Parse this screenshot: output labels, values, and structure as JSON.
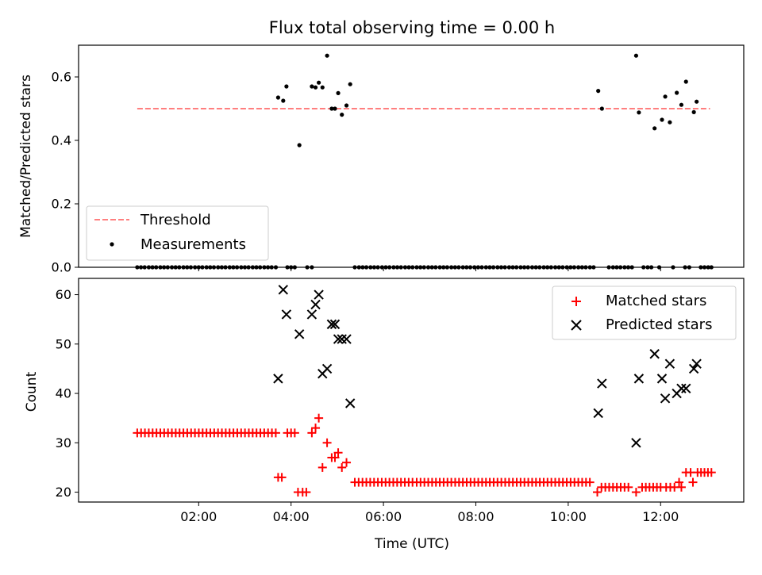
{
  "chart_data": [
    {
      "type": "scatter",
      "title": "Flux total observing time = 0.00 h",
      "xlabel": "",
      "ylabel": "Matched/Predicted stars",
      "xlim_hours": [
        -0.6,
        13.8
      ],
      "ylim": [
        0,
        0.7
      ],
      "yticks": [
        0.0,
        0.2,
        0.4,
        0.6
      ],
      "ytick_labels": [
        "0.0",
        "0.2",
        "0.4",
        "0.6"
      ],
      "xticks_hours": [
        2,
        4,
        6,
        8,
        10,
        12
      ],
      "grid": false,
      "legend": "lower-left",
      "series": [
        {
          "name": "Threshold",
          "style": "dashed-line",
          "color": "#ff7f7f",
          "x_hours": [
            0.67,
            13.07
          ],
          "y": [
            0.5,
            0.5
          ]
        },
        {
          "name": "Measurements",
          "style": "dot",
          "color": "#000000",
          "zero_points_x_hours": [
            0.67,
            0.75,
            0.83,
            0.92,
            1.0,
            1.08,
            1.17,
            1.25,
            1.33,
            1.42,
            1.5,
            1.58,
            1.67,
            1.75,
            1.83,
            1.92,
            2.0,
            2.08,
            2.17,
            2.25,
            2.33,
            2.42,
            2.5,
            2.58,
            2.67,
            2.75,
            2.83,
            2.92,
            3.0,
            3.08,
            3.17,
            3.25,
            3.33,
            3.42,
            3.5,
            3.58,
            3.67,
            3.92,
            4.0,
            4.08,
            4.35,
            4.45,
            5.38,
            5.47,
            5.55,
            5.63,
            5.72,
            5.8,
            5.88,
            5.97,
            6.05,
            6.13,
            6.22,
            6.3,
            6.38,
            6.47,
            6.55,
            6.63,
            6.72,
            6.8,
            6.88,
            6.97,
            7.05,
            7.13,
            7.22,
            7.3,
            7.38,
            7.47,
            7.55,
            7.63,
            7.72,
            7.8,
            7.88,
            7.97,
            8.05,
            8.13,
            8.22,
            8.3,
            8.38,
            8.47,
            8.55,
            8.63,
            8.72,
            8.8,
            8.88,
            8.97,
            9.05,
            9.13,
            9.22,
            9.3,
            9.38,
            9.47,
            9.55,
            9.63,
            9.72,
            9.8,
            9.88,
            9.97,
            10.05,
            10.13,
            10.22,
            10.3,
            10.38,
            10.47,
            10.55,
            10.88,
            10.97,
            11.05,
            11.13,
            11.22,
            11.3,
            11.38,
            11.63,
            11.72,
            11.8,
            11.97,
            12.27,
            12.53,
            12.62,
            12.87,
            12.95,
            13.03,
            13.1
          ],
          "x_hours": [
            3.72,
            3.83,
            3.9,
            4.18,
            4.45,
            4.53,
            4.6,
            4.68,
            4.78,
            4.88,
            4.95,
            5.02,
            5.1,
            5.2,
            5.28,
            10.65,
            10.73,
            11.47,
            11.53,
            11.87,
            12.03,
            12.1,
            12.2,
            12.35,
            12.45,
            12.55,
            12.72,
            12.78
          ],
          "y": [
            0.535,
            0.525,
            0.57,
            0.385,
            0.57,
            0.567,
            0.582,
            0.567,
            0.667,
            0.5,
            0.5,
            0.549,
            0.481,
            0.51,
            0.577,
            0.556,
            0.5,
            0.667,
            0.488,
            0.438,
            0.465,
            0.538,
            0.457,
            0.55,
            0.512,
            0.585,
            0.489,
            0.522
          ]
        }
      ]
    },
    {
      "type": "scatter",
      "title": "",
      "xlabel": "Time (UTC)",
      "ylabel": "Count",
      "xlim_hours": [
        -0.6,
        13.8
      ],
      "ylim": [
        18,
        63.3
      ],
      "yticks": [
        20,
        30,
        40,
        50,
        60
      ],
      "ytick_labels": [
        "20",
        "30",
        "40",
        "50",
        "60"
      ],
      "xticks_hours": [
        2,
        4,
        6,
        8,
        10,
        12
      ],
      "xtick_labels": [
        "02:00",
        "04:00",
        "06:00",
        "08:00",
        "10:00",
        "12:00"
      ],
      "grid": false,
      "legend": "top-right",
      "series": [
        {
          "name": "Matched stars",
          "marker": "+",
          "color": "#ff0000",
          "points": [
            {
              "x_from": 0.67,
              "x_to": 3.67,
              "step": 0.0833,
              "y": 32
            },
            {
              "x_from": 3.92,
              "x_to": 4.08,
              "step": 0.08,
              "y": 32
            },
            {
              "x_from": 5.38,
              "x_to": 6.63,
              "step": 0.0833,
              "y": 22
            },
            {
              "x_from": 6.72,
              "x_to": 10.55,
              "step": 0.0833,
              "y": 22
            },
            {
              "x_from": 10.72,
              "x_to": 11.38,
              "step": 0.0833,
              "y": 21
            },
            {
              "x_from": 11.6,
              "x_to": 12.0,
              "step": 0.08,
              "y": 21
            },
            {
              "x_from": 12.12,
              "x_to": 12.3,
              "step": 0.09,
              "y": 21
            },
            {
              "x_from": 12.55,
              "x_to": 12.65,
              "step": 0.1,
              "y": 24
            },
            {
              "x_from": 12.8,
              "x_to": 13.1,
              "step": 0.075,
              "y": 24
            }
          ],
          "x_hours": [
            3.72,
            3.8,
            4.15,
            4.25,
            4.33,
            4.45,
            4.53,
            4.6,
            4.68,
            4.78,
            4.88,
            4.95,
            5.02,
            5.1,
            5.2,
            10.63,
            11.47,
            12.4,
            12.45,
            12.7
          ],
          "y": [
            23,
            23,
            20,
            20,
            20,
            32,
            33,
            35,
            25,
            30,
            27,
            27,
            28,
            25,
            26,
            20,
            20,
            22,
            21,
            22
          ]
        },
        {
          "name": "Predicted stars",
          "marker": "x",
          "color": "#000000",
          "x_hours": [
            3.72,
            3.83,
            3.9,
            4.18,
            4.45,
            4.53,
            4.6,
            4.68,
            4.78,
            4.88,
            4.95,
            5.02,
            5.1,
            5.2,
            5.28,
            10.65,
            10.73,
            11.47,
            11.53,
            11.87,
            12.03,
            12.1,
            12.2,
            12.35,
            12.45,
            12.55,
            12.72,
            12.78
          ],
          "y": [
            43,
            61,
            56,
            52,
            56,
            58,
            60,
            44,
            45,
            54,
            54,
            51,
            51,
            51,
            38,
            36,
            42,
            30,
            43,
            48,
            43,
            39,
            46,
            40,
            41,
            41,
            45,
            46
          ]
        }
      ]
    }
  ]
}
